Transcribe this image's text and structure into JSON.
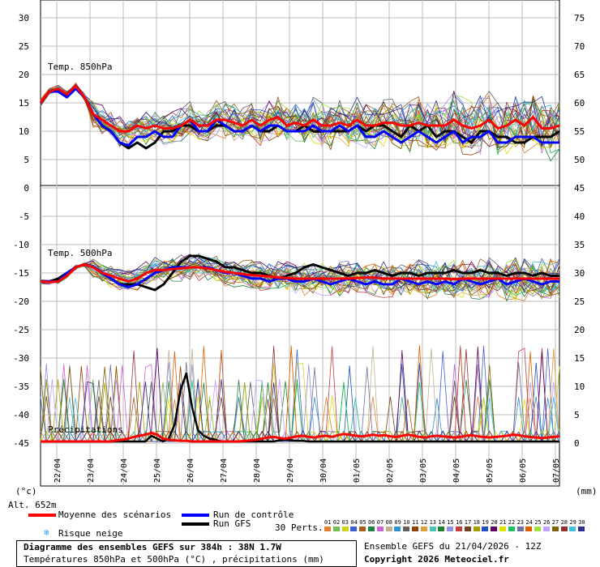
{
  "chart_data": {
    "type": "line",
    "x_dates": [
      "22/04",
      "23/04",
      "24/04",
      "25/04",
      "26/04",
      "27/04",
      "28/04",
      "29/04",
      "30/04",
      "01/05",
      "02/05",
      "03/05",
      "04/05",
      "05/05",
      "06/05",
      "07/05"
    ],
    "left_ticks": [
      "30",
      "25",
      "20",
      "15",
      "10",
      "5",
      "0",
      "-5",
      "-10",
      "-15",
      "-20",
      "-25",
      "-30",
      "-35",
      "-40",
      "-45"
    ],
    "right_ticks": [
      "75",
      "70",
      "65",
      "60",
      "55",
      "50",
      "45",
      "40",
      "35",
      "30",
      "25",
      "20",
      "15",
      "10",
      "5",
      "0"
    ],
    "left_unit": "(°c)",
    "right_unit": "(mm)",
    "panel_labels": {
      "t850": "Temp. 850hPa",
      "t500": "Temp. 500hPa",
      "precip": "Précipitations"
    },
    "altitude_label": "Alt. 652m",
    "t850_mean": [
      15,
      17,
      17.5,
      16.5,
      18,
      16,
      13,
      12,
      11,
      10,
      10,
      11,
      10.5,
      11,
      10.5,
      10.5,
      11,
      12,
      11,
      11,
      12,
      12,
      11.5,
      11,
      12,
      11,
      12,
      12.5,
      11,
      11.5,
      11,
      12,
      11,
      11,
      11.5,
      11,
      12,
      11,
      11,
      11.5,
      11.5,
      11,
      11,
      11.5,
      11,
      11,
      11,
      12,
      11,
      10.5,
      11,
      12,
      10.5,
      11,
      12,
      11,
      12.5,
      10.5,
      10.5,
      11
    ],
    "t850_control": [
      15,
      17,
      17,
      16,
      17.5,
      16,
      13,
      11,
      10,
      8,
      7.5,
      9,
      9,
      10,
      9,
      9,
      11,
      12,
      10,
      10,
      12,
      11,
      10,
      10,
      11,
      10,
      11,
      11,
      10,
      10,
      10,
      11,
      10,
      10,
      11,
      10,
      11,
      9,
      9,
      10,
      9,
      8,
      9,
      10,
      9,
      8,
      9,
      10,
      8,
      9,
      9,
      10,
      8,
      8,
      9,
      9,
      9,
      8,
      8,
      8
    ],
    "t850_gfs": [
      15,
      17,
      17,
      16,
      18,
      16,
      13,
      11,
      10,
      8,
      7,
      8,
      7,
      8,
      10,
      10,
      11,
      11,
      10,
      10,
      11,
      11,
      10,
      10,
      11,
      10,
      10,
      11,
      10,
      10,
      11,
      10,
      10,
      10,
      10,
      10,
      11,
      10,
      11,
      11,
      10,
      9,
      11,
      10,
      11,
      9,
      10,
      10,
      9,
      8,
      10,
      10,
      9,
      9,
      8,
      8,
      9,
      9,
      9,
      10
    ],
    "t500_mean": [
      -16.5,
      -16.6,
      -16.5,
      -15.5,
      -14,
      -13.5,
      -14,
      -15,
      -15.5,
      -16,
      -16.5,
      -16,
      -15,
      -14.5,
      -14.5,
      -14.3,
      -14.2,
      -14,
      -14,
      -14.2,
      -14.5,
      -14.8,
      -15,
      -15.2,
      -15.4,
      -15.5,
      -15.6,
      -15.8,
      -15.9,
      -16,
      -16,
      -16,
      -16,
      -16,
      -16,
      -16,
      -15.9,
      -15.8,
      -15.8,
      -16,
      -16,
      -16,
      -16,
      -16,
      -16,
      -16,
      -16,
      -16.1,
      -16,
      -16,
      -16,
      -16,
      -16,
      -16,
      -16,
      -16,
      -16,
      -16,
      -16,
      -16
    ],
    "t500_control": [
      -16.5,
      -16.5,
      -16.5,
      -15,
      -14,
      -13.5,
      -14,
      -15,
      -16,
      -17,
      -17.5,
      -17,
      -16,
      -15,
      -14.5,
      -14,
      -14,
      -14,
      -14,
      -14,
      -14.5,
      -15,
      -15,
      -15.5,
      -16,
      -16,
      -16.5,
      -16,
      -16,
      -16.5,
      -16.5,
      -16,
      -16.5,
      -17,
      -16.5,
      -16,
      -16.5,
      -17,
      -16.5,
      -17,
      -17,
      -16,
      -16.5,
      -17,
      -16.5,
      -17,
      -16.5,
      -17,
      -16,
      -16.5,
      -17,
      -16.5,
      -16,
      -17,
      -16.5,
      -16,
      -16.5,
      -17,
      -16.5,
      -16.5
    ],
    "t500_gfs": [
      -16.5,
      -16.5,
      -16,
      -15,
      -14,
      -13.5,
      -14,
      -15,
      -16,
      -17,
      -17,
      -17,
      -17.5,
      -18,
      -17,
      -15,
      -13,
      -12,
      -12,
      -12.5,
      -13,
      -14,
      -14,
      -14.5,
      -15,
      -15,
      -15.5,
      -16,
      -15.5,
      -15,
      -14,
      -13.5,
      -14,
      -14.5,
      -15,
      -15.5,
      -15,
      -15,
      -14.5,
      -15,
      -15.5,
      -15,
      -15,
      -15.5,
      -15,
      -15,
      -15,
      -14.5,
      -15,
      -15,
      -14.5,
      -15,
      -15,
      -15.5,
      -15,
      -15,
      -15.5,
      -15,
      -15.5,
      -15.5
    ],
    "precip_mean": [
      0,
      0,
      0,
      0,
      0,
      0,
      0,
      0,
      0,
      0,
      0,
      0,
      0,
      0.2,
      0.3,
      0.5,
      0.8,
      1,
      1.2,
      1.5,
      1.2,
      0.5,
      0.3,
      0.2,
      0.1,
      0.1,
      0,
      0,
      0,
      0,
      0,
      0,
      0,
      0,
      0,
      0.1,
      0.2,
      0.3,
      0.5,
      0.7,
      0.8,
      0.6,
      0.5,
      0.7,
      0.9,
      1,
      0.8,
      0.7,
      0.9,
      1,
      0.8,
      1.1,
      1.3,
      1.2,
      1,
      0.9,
      1,
      1.2,
      1,
      1.1,
      0.9,
      0.8,
      1,
      1.2,
      1,
      0.8,
      0.7,
      0.9,
      1,
      0.9,
      0.8,
      0.7,
      0.8,
      1,
      1.1,
      0.9,
      0.8,
      0.7,
      0.8,
      0.9,
      1,
      1.2,
      1.1,
      0.9,
      0.8,
      0.7,
      0.6,
      0.7,
      0.8,
      0.9
    ],
    "precip_gfs": [
      0,
      0,
      0,
      0,
      0,
      0,
      0,
      0,
      0,
      0,
      0,
      0,
      0,
      0,
      0,
      0,
      0,
      0,
      0,
      1,
      0.5,
      0,
      0.5,
      3,
      9,
      12,
      6,
      2,
      1,
      0.5,
      0.3,
      0,
      0,
      0,
      0,
      0,
      0,
      0,
      0,
      0,
      0,
      0.2,
      0.3,
      0.2,
      0.1,
      0.1,
      0,
      0,
      0,
      0,
      0,
      0,
      0,
      0,
      0,
      0,
      0,
      0,
      0,
      0,
      0,
      0,
      0,
      0,
      0,
      0,
      0,
      0,
      0,
      0,
      0,
      0,
      0,
      0,
      0,
      0,
      0,
      0,
      0,
      0,
      0,
      0,
      0,
      0,
      0,
      0,
      0,
      0,
      0,
      0
    ]
  },
  "legend": {
    "mean": "Moyenne des scénarios",
    "control": "Run de contrôle",
    "gfs": "Run GFS",
    "snow": "Risque neige",
    "perts_label": "30 Perts.",
    "pert_numbers": [
      "01",
      "02",
      "03",
      "04",
      "05",
      "06",
      "07",
      "08",
      "09",
      "10",
      "11",
      "12",
      "13",
      "14",
      "15",
      "16",
      "17",
      "18",
      "19",
      "20",
      "21",
      "22",
      "23",
      "24",
      "25",
      "26",
      "27",
      "28",
      "29",
      "30"
    ],
    "pert_colors": [
      "#e08030",
      "#70c050",
      "#d0d020",
      "#4060d0",
      "#a06020",
      "#208040",
      "#d060d0",
      "#c0b090",
      "#3090d0",
      "#606060",
      "#904000",
      "#e0a040",
      "#50c0b0",
      "#208030",
      "#9090e0",
      "#c04040",
      "#704020",
      "#a0a000",
      "#2050c0",
      "#600060",
      "#e0e000",
      "#20c060",
      "#7070a0",
      "#e06000",
      "#a0e040",
      "#c0a0ff",
      "#806000",
      "#903030",
      "#40c0e0",
      "#303090"
    ]
  },
  "footer": {
    "title": "Diagramme des ensembles GEFS sur 384h : 38N 1.7W",
    "subtitle": "Températures 850hPa et 500hPa (°C) , précipitations (mm)",
    "run": "Ensemble GEFS du 21/04/2026 - 12Z",
    "copyright": "Copyright 2026 Meteociel.fr"
  },
  "colors": {
    "mean": "#ff0000",
    "control": "#0000ff",
    "gfs": "#000000",
    "snow": "#3399ff"
  }
}
